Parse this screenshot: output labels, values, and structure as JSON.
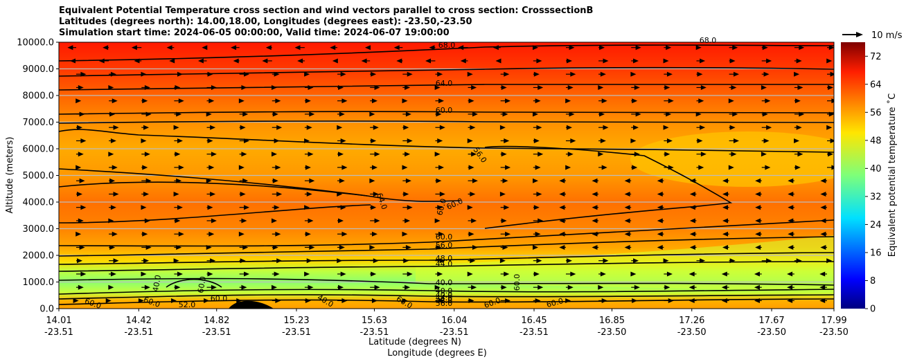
{
  "chart_data": {
    "type": "heatmap",
    "title_lines": [
      "Equivalent Potential Temperature cross section and wind vectors parallel to cross section: CrosssectionB",
      "Latitudes (degrees north): 14.00,18.00, Longitudes (degrees east): -23.50,-23.50",
      "Simulation start time: 2024-06-05 00:00:00, Valid time: 2024-06-07 19:00:00"
    ],
    "ylabel": "Altitude (meters)",
    "xlabel_lat": "Latitude (degrees N)",
    "xlabel_lon": "Longitude (degrees E)",
    "ylim": [
      0,
      10000
    ],
    "y_ticks": [
      "0.0",
      "1000.0",
      "2000.0",
      "3000.0",
      "4000.0",
      "5000.0",
      "6000.0",
      "7000.0",
      "8000.0",
      "9000.0",
      "10000.0"
    ],
    "x_ticks": [
      {
        "lat": "14.01",
        "lon": "-23.51"
      },
      {
        "lat": "14.42",
        "lon": "-23.51"
      },
      {
        "lat": "14.82",
        "lon": "-23.51"
      },
      {
        "lat": "15.23",
        "lon": "-23.51"
      },
      {
        "lat": "15.63",
        "lon": "-23.51"
      },
      {
        "lat": "16.04",
        "lon": "-23.51"
      },
      {
        "lat": "16.45",
        "lon": "-23.51"
      },
      {
        "lat": "16.85",
        "lon": "-23.50"
      },
      {
        "lat": "17.26",
        "lon": "-23.50"
      },
      {
        "lat": "17.67",
        "lon": "-23.50"
      },
      {
        "lat": "17.99",
        "lon": "-23.50"
      }
    ],
    "colorbar": {
      "label": "Equivalent potential temperature $^\\circ$C",
      "label_display": "Equivalent potential temperature ˚C",
      "range": [
        0,
        76
      ],
      "ticks": [
        "0",
        "8",
        "16",
        "24",
        "32",
        "40",
        "48",
        "56",
        "64",
        "72"
      ]
    },
    "wind_legend": "10 m/s",
    "contour_labels": [
      "68.0",
      "64.0",
      "60.0",
      "56.0",
      "64.0",
      "60.0",
      "60.0",
      "60.0",
      "56.0",
      "48.0",
      "44.0",
      "40.0",
      "40.0",
      "40.0",
      "44.0",
      "48.0",
      "56.0",
      "60.0",
      "40.0",
      "60.0",
      "60.0",
      "60.0",
      "52.0",
      "60.0",
      "60.0",
      "60.0",
      "60.0",
      "68.0",
      "40.0"
    ],
    "profile": [
      {
        "alt": 0,
        "theta": 60
      },
      {
        "alt": 300,
        "theta": 58
      },
      {
        "alt": 600,
        "theta": 42
      },
      {
        "alt": 1000,
        "theta": 38
      },
      {
        "alt": 1400,
        "theta": 43
      },
      {
        "alt": 1800,
        "theta": 50
      },
      {
        "alt": 2300,
        "theta": 56
      },
      {
        "alt": 3000,
        "theta": 60
      },
      {
        "alt": 4000,
        "theta": 61
      },
      {
        "alt": 5000,
        "theta": 58
      },
      {
        "alt": 6000,
        "theta": 56
      },
      {
        "alt": 7000,
        "theta": 59
      },
      {
        "alt": 8000,
        "theta": 62
      },
      {
        "alt": 9000,
        "theta": 66
      },
      {
        "alt": 10000,
        "theta": 71
      }
    ]
  }
}
